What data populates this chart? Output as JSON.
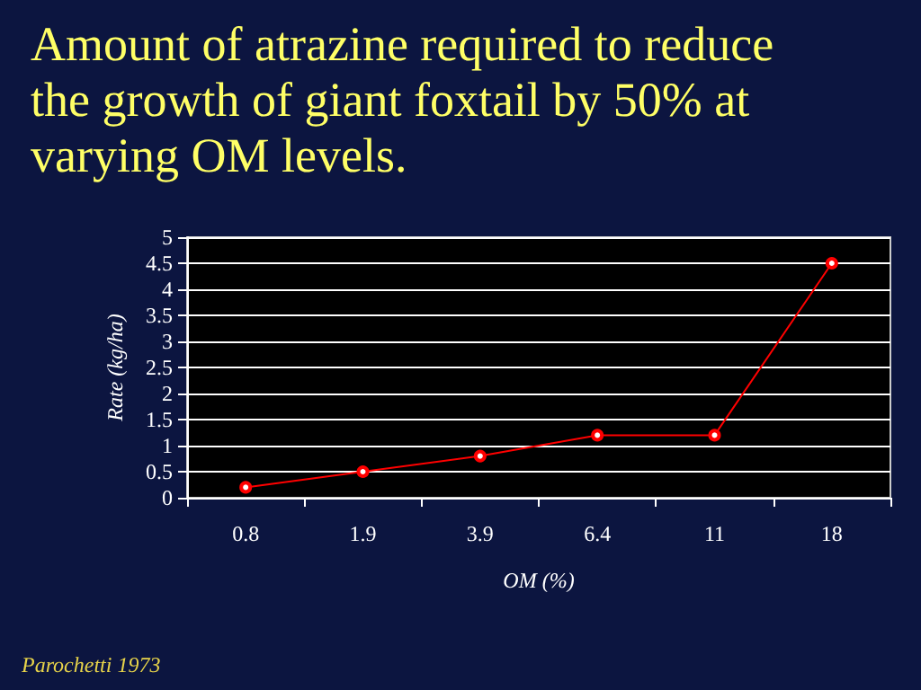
{
  "chart_data": {
    "type": "line",
    "title": "Amount of atrazine required to reduce the growth of giant foxtail by 50% at varying OM levels.",
    "xlabel": "OM (%)",
    "ylabel": "Rate (kg/ha)",
    "categories": [
      "0.8",
      "1.9",
      "3.9",
      "6.4",
      "11",
      "18"
    ],
    "series": [
      {
        "color": "#ff0000",
        "values": [
          0.2,
          0.5,
          0.8,
          1.2,
          1.2,
          4.5
        ]
      }
    ],
    "ylim": [
      0,
      5
    ],
    "yticks": [
      0,
      0.5,
      1,
      1.5,
      2,
      2.5,
      3,
      3.5,
      4,
      4.5,
      5
    ],
    "grid": "y",
    "marker": "circle",
    "line_style": "solid",
    "annotations": [
      "Parochetti 1973"
    ]
  }
}
